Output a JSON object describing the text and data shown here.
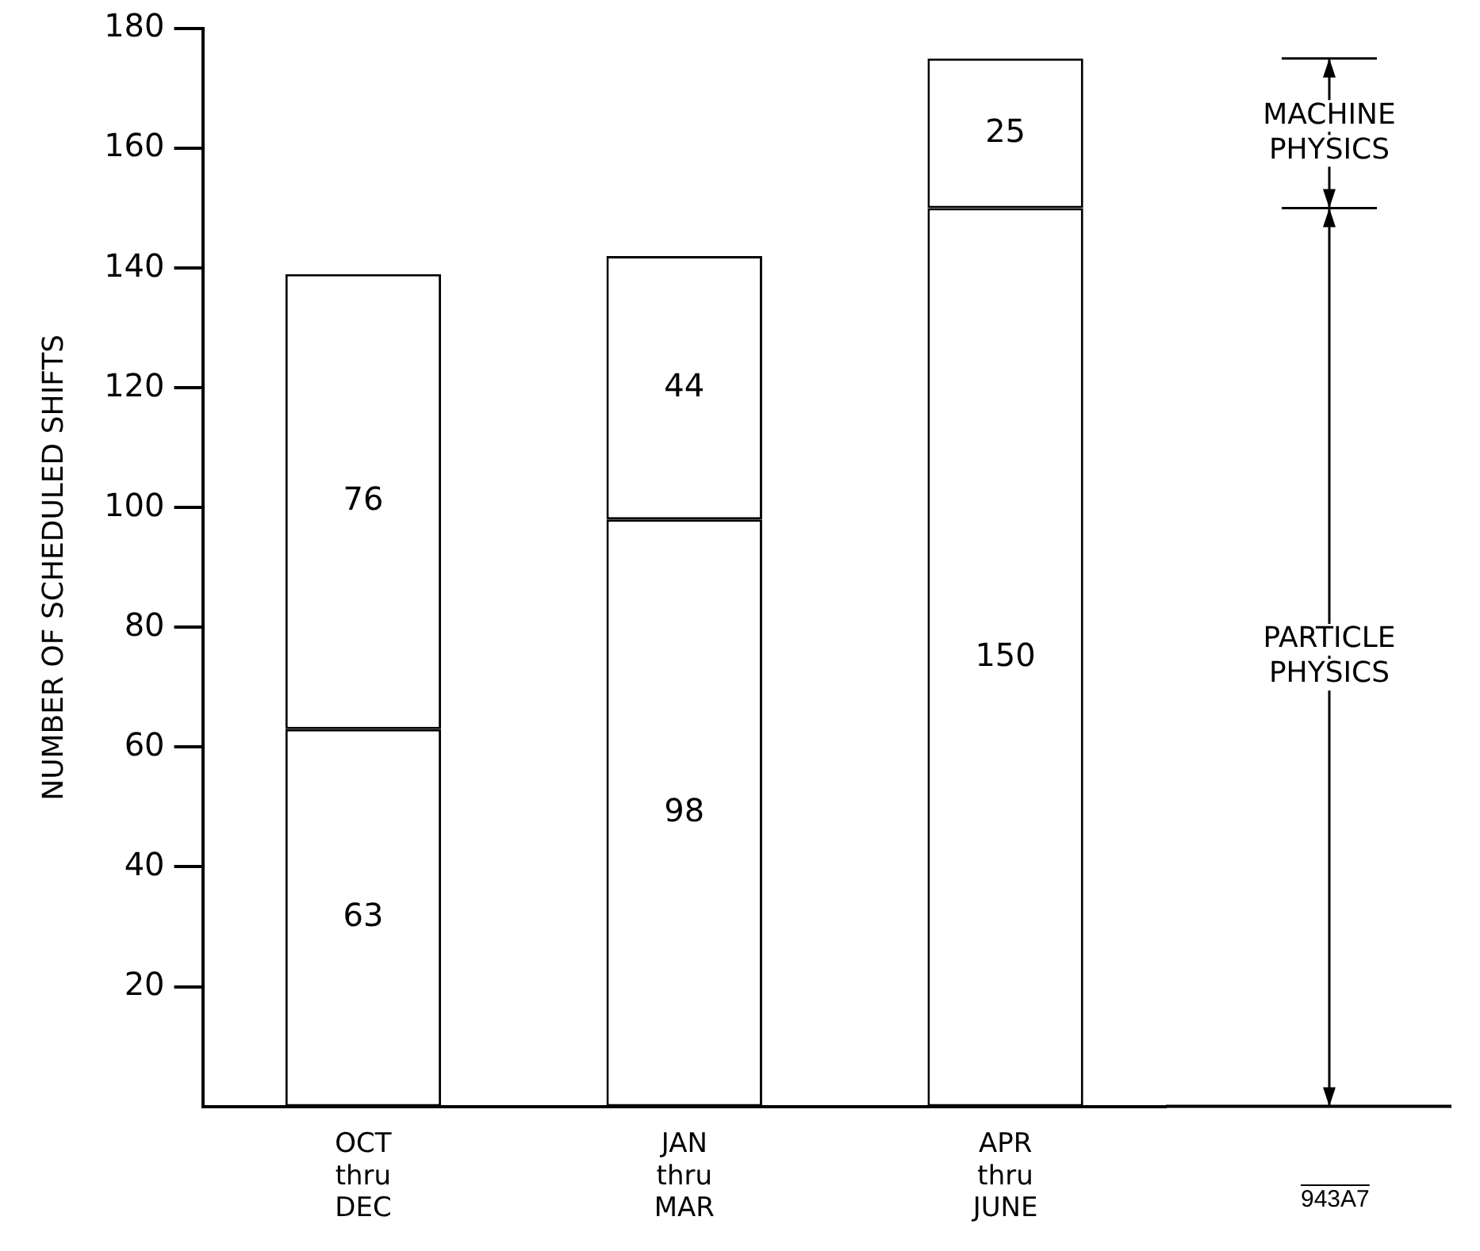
{
  "chart_data": {
    "type": "bar",
    "stacked": true,
    "ylabel": "NUMBER OF SCHEDULED SHIFTS",
    "categories": [
      "OCT thru DEC",
      "JAN thru MAR",
      "APR thru JUNE"
    ],
    "series": [
      {
        "name": "PARTICLE PHYSICS",
        "color": "#ffffff",
        "values": [
          63,
          98,
          150
        ]
      },
      {
        "name": "MACHINE PHYSICS",
        "color": "#ffffff",
        "values": [
          76,
          44,
          25
        ]
      }
    ],
    "ylim": [
      0,
      180
    ],
    "yticks": [
      20,
      40,
      60,
      80,
      100,
      120,
      140,
      160,
      180
    ],
    "grid": false,
    "legend": "right",
    "data_labels": true,
    "annotations": [
      "943A7"
    ]
  }
}
